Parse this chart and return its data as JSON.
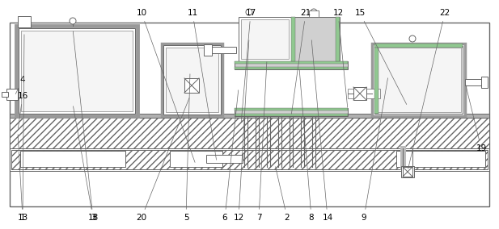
{
  "line_color": "#666666",
  "gray_color": "#aaaaaa",
  "green_color": "#90c890",
  "hatch_fill": "#ffffff",
  "white": "#ffffff",
  "light_gray": "#e8e8e8",
  "dotted_gray": "#d0d0d0"
}
